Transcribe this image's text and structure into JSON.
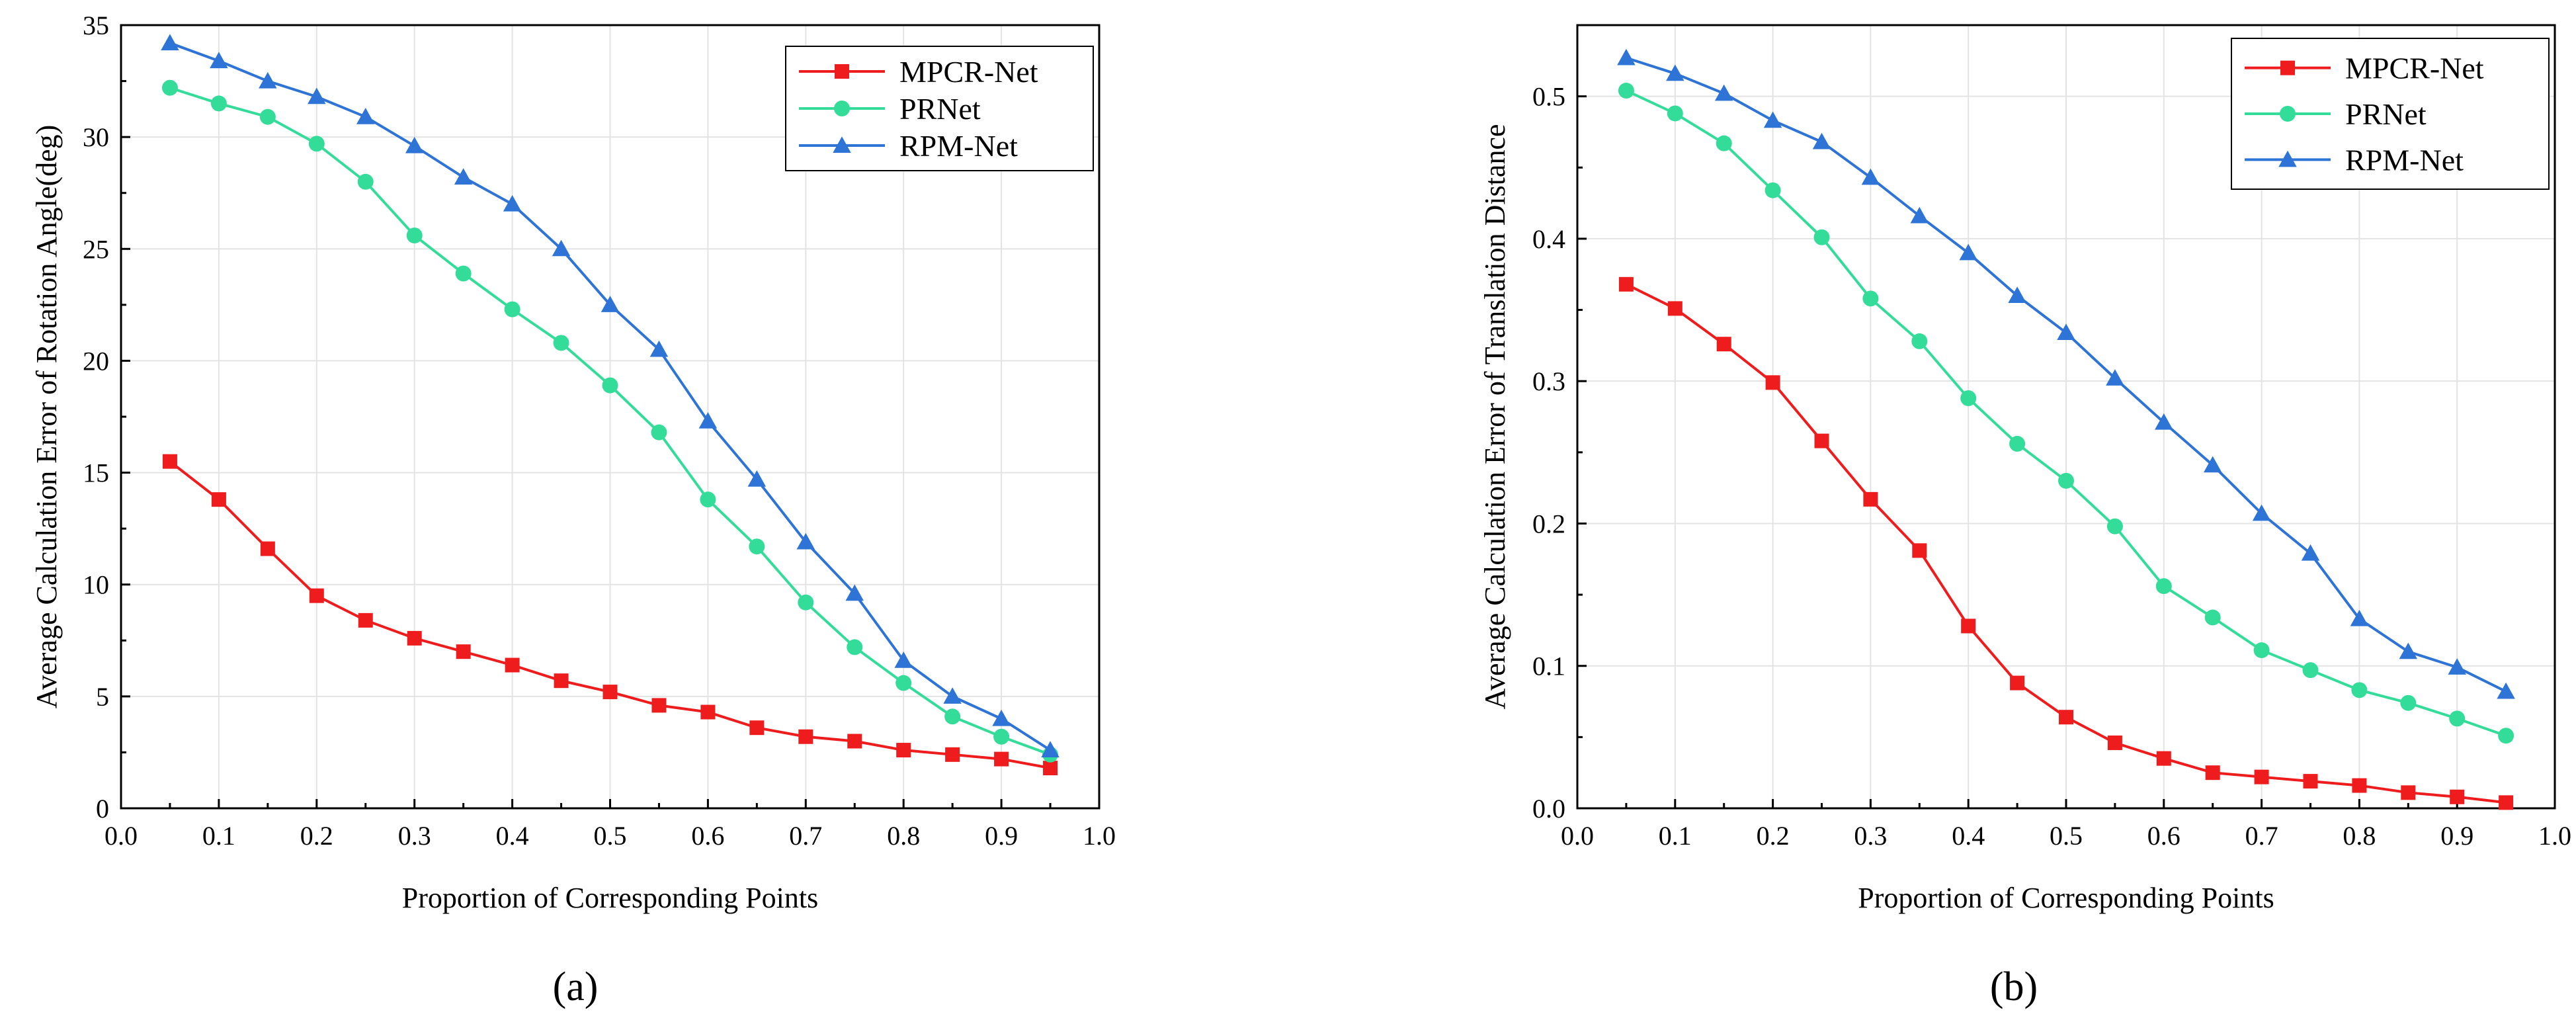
{
  "colors": {
    "MPCR-Net": "#ee1c1c",
    "PRNet": "#33dd99",
    "RPM-Net": "#2e74d6"
  },
  "chart_data": [
    {
      "type": "line",
      "panel_caption": "(a)",
      "xlabel": "Proportion of Corresponding Points",
      "ylabel": "Average Calculation Error of Rotation Angle(deg)",
      "xlim": [
        0.0,
        1.0
      ],
      "ylim": [
        0,
        35
      ],
      "xticks": [
        0.0,
        0.1,
        0.2,
        0.3,
        0.4,
        0.5,
        0.6,
        0.7,
        0.8,
        0.9,
        1.0
      ],
      "xtick_labels": [
        "0.0",
        "0.1",
        "0.2",
        "0.3",
        "0.4",
        "0.5",
        "0.6",
        "0.7",
        "0.8",
        "0.9",
        "1.0"
      ],
      "yticks": [
        0,
        5,
        10,
        15,
        20,
        25,
        30,
        35
      ],
      "ytick_labels": [
        "0",
        "5",
        "10",
        "15",
        "20",
        "25",
        "30",
        "35"
      ],
      "grid": true,
      "legend_position": "top-right",
      "x": [
        0.05,
        0.1,
        0.15,
        0.2,
        0.25,
        0.3,
        0.35,
        0.4,
        0.45,
        0.5,
        0.55,
        0.6,
        0.65,
        0.7,
        0.75,
        0.8,
        0.85,
        0.9,
        0.95
      ],
      "series": [
        {
          "name": "MPCR-Net",
          "marker": "square",
          "values": [
            15.5,
            13.8,
            11.6,
            9.5,
            8.4,
            7.6,
            7.0,
            6.4,
            5.7,
            5.2,
            4.6,
            4.3,
            3.6,
            3.2,
            3.0,
            2.6,
            2.4,
            2.2,
            1.8
          ]
        },
        {
          "name": "PRNet",
          "marker": "circle",
          "values": [
            32.2,
            31.5,
            30.9,
            29.7,
            28.0,
            25.6,
            23.9,
            22.3,
            20.8,
            18.9,
            16.8,
            13.8,
            11.7,
            9.2,
            7.2,
            5.6,
            4.1,
            3.2,
            2.4
          ]
        },
        {
          "name": "RPM-Net",
          "marker": "triangle",
          "values": [
            34.2,
            33.4,
            32.5,
            31.8,
            30.9,
            29.6,
            28.2,
            27.0,
            25.0,
            22.5,
            20.5,
            17.3,
            14.7,
            11.9,
            9.6,
            6.6,
            5.0,
            4.0,
            2.6
          ]
        }
      ]
    },
    {
      "type": "line",
      "panel_caption": "(b)",
      "xlabel": "Proportion of Corresponding Points",
      "ylabel": "Average Calculation Error of Translation Distance",
      "xlim": [
        0.0,
        1.0
      ],
      "ylim": [
        0,
        0.55
      ],
      "xticks": [
        0.0,
        0.1,
        0.2,
        0.3,
        0.4,
        0.5,
        0.6,
        0.7,
        0.8,
        0.9,
        1.0
      ],
      "xtick_labels": [
        "0.0",
        "0.1",
        "0.2",
        "0.3",
        "0.4",
        "0.5",
        "0.6",
        "0.7",
        "0.8",
        "0.9",
        "1.0"
      ],
      "yticks": [
        0,
        0.1,
        0.2,
        0.3,
        0.4,
        0.5
      ],
      "ytick_labels": [
        "0.0",
        "0.1",
        "0.2",
        "0.3",
        "0.4",
        "0.5"
      ],
      "grid": true,
      "legend_position": "top-right",
      "x": [
        0.05,
        0.1,
        0.15,
        0.2,
        0.25,
        0.3,
        0.35,
        0.4,
        0.45,
        0.5,
        0.55,
        0.6,
        0.65,
        0.7,
        0.75,
        0.8,
        0.85,
        0.9,
        0.95
      ],
      "series": [
        {
          "name": "MPCR-Net",
          "marker": "square",
          "values": [
            0.368,
            0.351,
            0.326,
            0.299,
            0.258,
            0.217,
            0.181,
            0.128,
            0.088,
            0.064,
            0.046,
            0.035,
            0.025,
            0.022,
            0.019,
            0.016,
            0.011,
            0.008,
            0.004
          ]
        },
        {
          "name": "PRNet",
          "marker": "circle",
          "values": [
            0.504,
            0.488,
            0.467,
            0.434,
            0.401,
            0.358,
            0.328,
            0.288,
            0.256,
            0.23,
            0.198,
            0.156,
            0.134,
            0.111,
            0.097,
            0.083,
            0.074,
            0.063,
            0.051
          ]
        },
        {
          "name": "RPM-Net",
          "marker": "triangle",
          "values": [
            0.527,
            0.516,
            0.502,
            0.483,
            0.468,
            0.443,
            0.416,
            0.39,
            0.36,
            0.334,
            0.302,
            0.271,
            0.241,
            0.207,
            0.179,
            0.133,
            0.11,
            0.099,
            0.082
          ]
        }
      ]
    }
  ]
}
